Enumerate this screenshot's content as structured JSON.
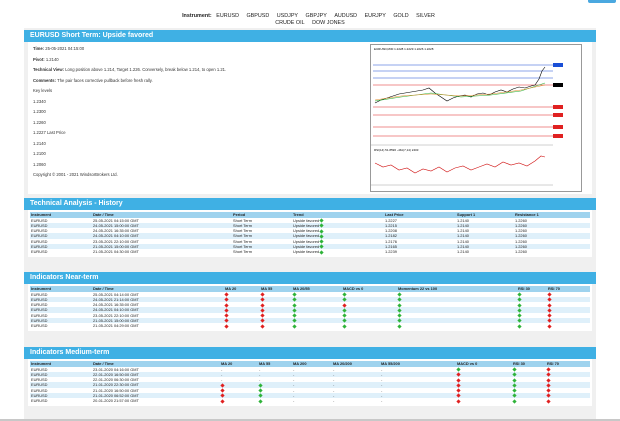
{
  "instruments": {
    "label": "Instrument:",
    "items": [
      "EURUSD",
      "GBPUSD",
      "USDJPY",
      "GBPJPY",
      "AUDUSD",
      "EURJPY",
      "GOLD",
      "SILVER",
      "CRUDE OIL",
      "DOW JONES"
    ]
  },
  "short_term": {
    "title": "EURUSD Short Term: Upside favored",
    "time_label": "Time:",
    "time_value": "25-05-2021 04:15:00",
    "pivot_label": "Pivot:",
    "pivot_value": "1.2140",
    "tech_label": "Technical View:",
    "tech_value": "Long position above 1.214, Target 1.226. Conversely, break below 1.214, to open 1.21.",
    "comments_label": "Comments:",
    "comments_value": "The pair faces corrective pullback before fresh rally.",
    "key_levels_label": "Key levels",
    "levels": [
      "1.2340",
      "1.2300",
      "1.2260",
      "1.2227 Last Price",
      "1.2140",
      "1.2100",
      "1.2060"
    ],
    "copyright": "Copyright © 2001 - 2021 WindsorBrokers Ltd.",
    "chart_header": "EURUSD,M30 1.2228 1.2229 1.2226 1.2228",
    "rsi_label": "RSI(14) 51.8596  ~MA(7,14) 2403"
  },
  "history": {
    "title": "Technical Analysis - History",
    "headers": [
      "Instrument",
      "Date / Time",
      "Period",
      "Trend",
      "Last Price",
      "Support 1",
      "Resistance 1"
    ],
    "rows": [
      [
        "EURUSD",
        "25-05-2021 04:15:00 GMT",
        "Short Term",
        "Upside favored",
        "1.2227",
        "1.2140",
        "1.2260"
      ],
      [
        "EURUSD",
        "24-05-2021 15:00:00 GMT",
        "Short Term",
        "Upside favored",
        "1.2215",
        "1.2140",
        "1.2260"
      ],
      [
        "EURUSD",
        "24-05-2021 16:35:00 GMT",
        "Short Term",
        "Upside favored",
        "1.2208",
        "1.2140",
        "1.2260"
      ],
      [
        "EURUSD",
        "24-05-2021 04:10:00 GMT",
        "Short Term",
        "Upside favored",
        "1.2182",
        "1.2140",
        "1.2260"
      ],
      [
        "EURUSD",
        "23-05-2021 22:10:00 GMT",
        "Short Term",
        "Upside favored",
        "1.2176",
        "1.2140",
        "1.2260"
      ],
      [
        "EURUSD",
        "21-05-2021 15:00:00 GMT",
        "Short Term",
        "Upside favored",
        "1.2165",
        "1.2140",
        "1.2260"
      ],
      [
        "EURUSD",
        "21-05-2021 04:30:00 GMT",
        "Short Term",
        "Upside favored",
        "1.2239",
        "1.2140",
        "1.2260"
      ]
    ]
  },
  "near": {
    "title": "Indicators Near-term",
    "headers": [
      "Instrument",
      "Date / Time",
      "MA 20",
      "MA 55",
      "MA 20/55",
      "MACD vs 0",
      "Momentum 22 vs 100",
      "RSI 30",
      "RSI 70"
    ],
    "rows": [
      [
        "EURUSD",
        "25-05-2021 04:14:00 GMT"
      ],
      [
        "EURUSD",
        "24-05-2021 21:14:00 GMT"
      ],
      [
        "EURUSD",
        "24-05-2021 16:35:00 GMT"
      ],
      [
        "EURUSD",
        "24-05-2021 04:10:00 GMT"
      ],
      [
        "EURUSD",
        "23-05-2021 22:10:00 GMT"
      ],
      [
        "EURUSD",
        "21-05-2021 15:00:00 GMT"
      ],
      [
        "EURUSD",
        "21-05-2021 04:29:00 GMT"
      ]
    ]
  },
  "medium": {
    "title": "Indicators Medium-term",
    "headers": [
      "Instrument",
      "Date / Time",
      "MA 20",
      "MA 55",
      "MA 200",
      "MA 20/200",
      "MA 55/200",
      "MACD vs 0",
      "RSI 30",
      "RSI 70"
    ],
    "rows": [
      [
        "EURUSD",
        "23-01-2020 04:16:00 GMT"
      ],
      [
        "EURUSD",
        "22-01-2020 16:50:00 GMT"
      ],
      [
        "EURUSD",
        "22-01-2020 06:30:00 GMT"
      ],
      [
        "EURUSD",
        "21-01-2020 22:30:00 GMT"
      ],
      [
        "EURUSD",
        "21-01-2020 16:50:00 GMT"
      ],
      [
        "EURUSD",
        "21-01-2020 06:52:00 GMT"
      ],
      [
        "EURUSD",
        "20-01-2020 21:57:00 GMT"
      ]
    ]
  },
  "colors": {
    "accent": "#3fb0e4",
    "up": "#2fb33a",
    "down": "#e02020"
  }
}
